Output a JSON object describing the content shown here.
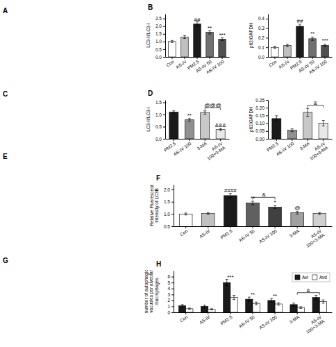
{
  "annotations": [
    {
      "text": "A"
    },
    {
      "text": "C"
    },
    {
      "text": "E"
    },
    {
      "text": "G"
    }
  ],
  "chart_data": [
    {
      "type": "bar",
      "title": "B",
      "ylabel": "LC3-II/LC3-I",
      "categories": [
        "Con",
        "AS-IV",
        "PM2.5",
        "AS-IV 50",
        "AS-IV 100"
      ],
      "values": [
        1.0,
        1.3,
        2.15,
        1.6,
        1.15
      ],
      "errors": [
        0.07,
        0.1,
        0.13,
        0.11,
        0.09
      ],
      "colors": [
        "white",
        "#c0c0c0",
        "#1a1a1a",
        "#707070",
        "#505050"
      ],
      "ylim": [
        0,
        2.8
      ],
      "yticks": [
        {
          "value": 0,
          "label": "0.0"
        },
        0.5,
        {
          "value": 1,
          "label": "1.0"
        },
        1.5,
        {
          "value": 2,
          "label": "2.0"
        },
        2.5
      ],
      "annotations": [
        {
          "x": 2,
          "y": 2.32,
          "text": "##",
          "color": "black"
        },
        {
          "x": 3,
          "y": 1.78,
          "text": "**",
          "color": "black"
        },
        {
          "x": 4,
          "y": 1.32,
          "text": "***",
          "color": "black"
        }
      ]
    },
    {
      "type": "bar",
      "ylabel": "p62/GAPDH",
      "categories": [
        "Con",
        "AS-IV",
        "PM2.5",
        "AS-IV 50",
        "AS-IV 100"
      ],
      "values": [
        0.1,
        0.12,
        0.32,
        0.19,
        0.12
      ],
      "errors": [
        0.012,
        0.014,
        0.022,
        0.018,
        0.013
      ],
      "colors": [
        "white",
        "#c0c0c0",
        "#1a1a1a",
        "#707070",
        "#505050"
      ],
      "ylim": [
        0,
        0.45
      ],
      "yticks": [
        {
          "value": 0,
          "label": "0.0"
        },
        0.1,
        0.2,
        0.3,
        0.4
      ],
      "annotations": [
        {
          "x": 2,
          "y": 0.355,
          "text": "##",
          "color": "black"
        },
        {
          "x": 3,
          "y": 0.225,
          "text": "**",
          "color": "black"
        },
        {
          "x": 4,
          "y": 0.15,
          "text": "***",
          "color": "black"
        }
      ]
    },
    {
      "type": "bar",
      "title": "D",
      "ylabel": "LC3-II/LC3-I",
      "categories": [
        "PM2.5",
        "AS-IV 100",
        "3-MA",
        "AS-IV\n100+3-MA"
      ],
      "values": [
        1.1,
        0.78,
        1.08,
        0.38
      ],
      "errors": [
        0.05,
        0.055,
        0.07,
        0.04
      ],
      "colors": [
        "#1a1a1a",
        "#909090",
        "#c8c8c8",
        "#e8e8e8"
      ],
      "ylim": [
        0,
        1.6
      ],
      "yticks": [
        {
          "value": 0,
          "label": "0.0"
        },
        0.5,
        {
          "value": 1,
          "label": "1.0"
        },
        1.5
      ],
      "annotations": [
        {
          "x": 1,
          "y": 0.88,
          "text": "**",
          "color": "black"
        },
        {
          "x": 3,
          "y": 0.48,
          "text": "&&&",
          "color": "black"
        },
        {
          "x1": 2,
          "x2": 3,
          "y": 1.28,
          "text": "@@@",
          "color": "black"
        }
      ]
    },
    {
      "type": "bar",
      "ylabel": "p62/GAPDH",
      "categories": [
        "PM2.5",
        "AS-IV 100",
        "3-MA",
        "AS-IV\n100+3-MA"
      ],
      "values": [
        0.13,
        0.055,
        0.17,
        0.1
      ],
      "errors": [
        0.018,
        0.009,
        0.025,
        0.018
      ],
      "colors": [
        "#1a1a1a",
        "#909090",
        "#c8c8c8",
        "#e8e8e8"
      ],
      "ylim": [
        0,
        0.25
      ],
      "yticks": [
        {
          "value": 0,
          "label": "0.00"
        },
        0.05,
        {
          "value": 0.1,
          "label": "0.10"
        },
        0.15,
        {
          "value": 0.2,
          "label": "0.20"
        },
        0.25
      ],
      "annotations": [
        {
          "x1": 2,
          "x2": 3,
          "y": 0.215,
          "text": "&",
          "color": "black"
        }
      ]
    },
    {
      "type": "bar",
      "title": "F",
      "ylabel": "Relative Fluorescent\nIntensity of LC3B",
      "categories": [
        "Con",
        "AS-IV",
        "PM2.5",
        "AS-IV 50",
        "AS-IV 100",
        "3-MA",
        "AS-IV\n100+3-MA"
      ],
      "values": [
        1.0,
        1.02,
        1.75,
        1.45,
        1.28,
        1.05,
        1.02
      ],
      "errors": [
        0.04,
        0.04,
        0.09,
        0.07,
        0.06,
        0.055,
        0.04
      ],
      "colors": [
        "white",
        "#c0c0c0",
        "#1a1a1a",
        "#606060",
        "#404040",
        "#a0a0a0",
        "#d0d0d0"
      ],
      "ylim": [
        0.5,
        2.2
      ],
      "yticks": [
        0.5,
        {
          "value": 1,
          "label": "1.0"
        },
        1.5,
        {
          "value": 2,
          "label": "2.0"
        }
      ],
      "annotations": [
        {
          "x": 2,
          "y": 1.88,
          "text": "####",
          "color": "black"
        },
        {
          "x": 3,
          "y": 1.59,
          "text": "**",
          "color": "black"
        },
        {
          "x": 4,
          "y": 1.41,
          "text": "*",
          "color": "black"
        },
        {
          "x1": 3,
          "x2": 4,
          "y": 1.68,
          "text": "&",
          "color": "black"
        },
        {
          "x": 5,
          "y": 1.18,
          "text": "@",
          "color": "black"
        }
      ]
    },
    {
      "type": "bar",
      "title": "H",
      "ylabel": "number of autophagic\nvacuoles per alveolar\nmacrophages",
      "categories": [
        "Con",
        "AS-IV",
        "PM2.5",
        "AS-IV 50",
        "AS-IV 100",
        "3-MA",
        "AS-IV\n100+3-MA"
      ],
      "series": [
        {
          "name": "Avi",
          "color": "#1a1a1a",
          "values": [
            1.1,
            1.0,
            5.0,
            2.2,
            2.0,
            1.3,
            2.5
          ],
          "errors": [
            0.2,
            0.2,
            0.55,
            0.35,
            0.3,
            0.25,
            0.35
          ]
        },
        {
          "name": "Avd",
          "color": "white",
          "values": [
            0.6,
            0.5,
            2.5,
            1.5,
            1.4,
            0.8,
            1.8
          ],
          "errors": [
            0.12,
            0.1,
            0.35,
            0.22,
            0.2,
            0.15,
            0.28
          ]
        }
      ],
      "legend": "upper right",
      "ylim": [
        0,
        7.0
      ],
      "yticks": [
        0,
        1,
        2,
        3,
        4,
        5,
        6
      ],
      "annotations": [
        {
          "x": 2,
          "y": 5.65,
          "text": "***",
          "color": "black"
        },
        {
          "x": 3,
          "y": 2.65,
          "text": "**",
          "color": "black"
        },
        {
          "x": 4,
          "y": 2.4,
          "text": "**",
          "color": "black"
        },
        {
          "x1": 5,
          "x2": 6,
          "y": 3.3,
          "text": "&",
          "color": "black"
        }
      ]
    }
  ]
}
